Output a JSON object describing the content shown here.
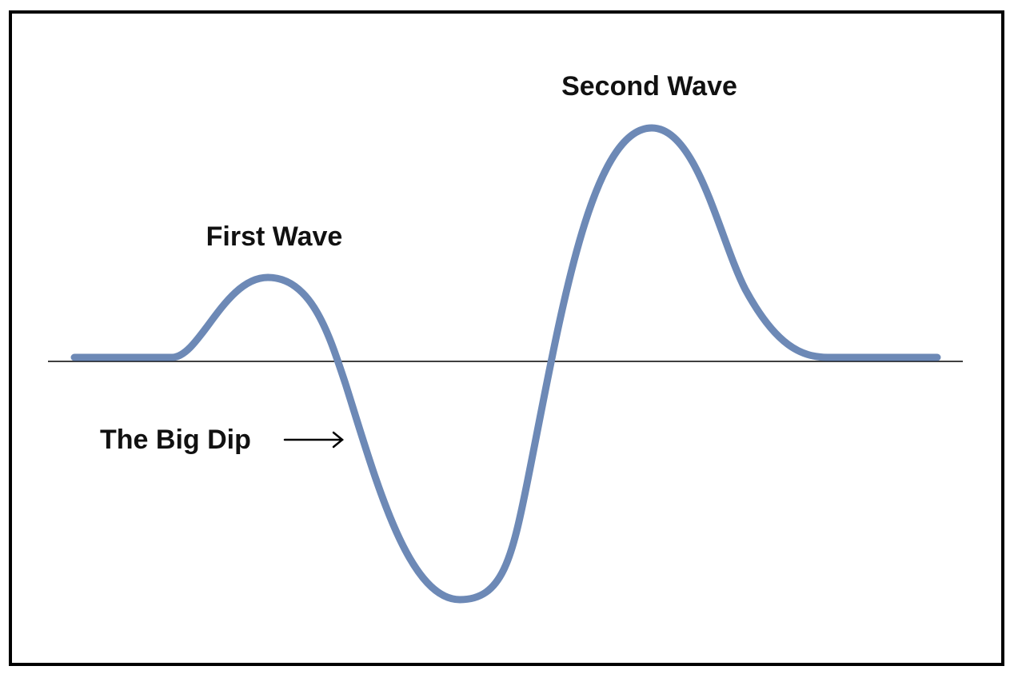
{
  "annotations": [
    "Second Wave",
    "First Wave",
    "The Big Dip"
  ]
}
